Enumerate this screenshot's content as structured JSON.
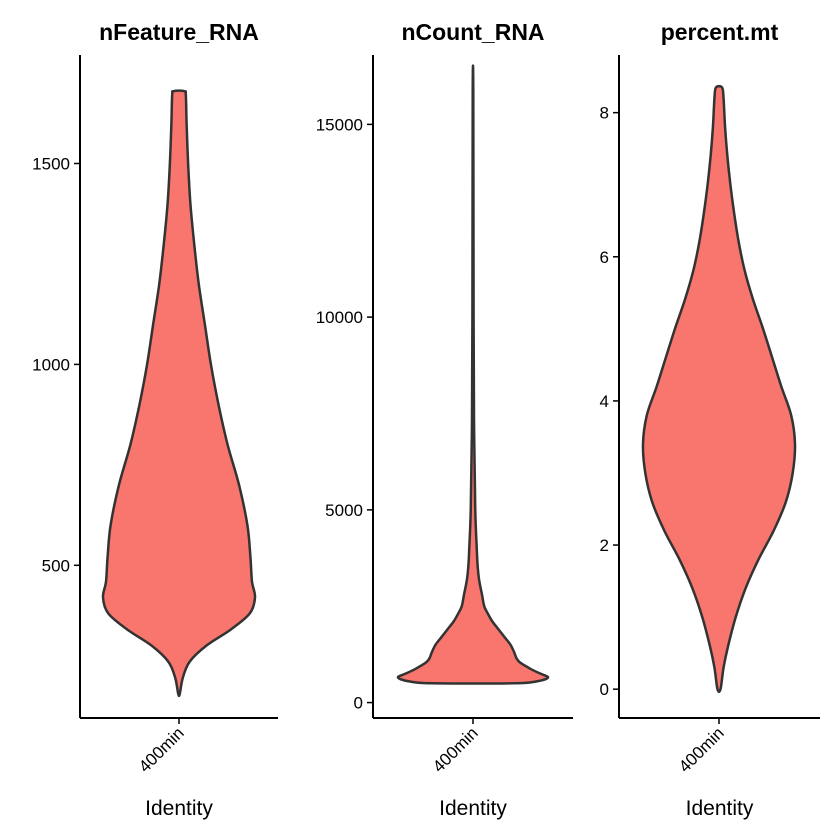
{
  "chart_data": [
    {
      "type": "violin",
      "title": "nFeature_RNA",
      "xlabel": "Identity",
      "ylabel": "",
      "categories": [
        "400min"
      ],
      "ylim": [
        120,
        1770
      ],
      "yticks": [
        500,
        1000,
        1500
      ],
      "fill_color": "#F8766D",
      "outline_color": "#333333",
      "min": 180,
      "max": 1680,
      "density_profile": [
        {
          "y": 180,
          "width": 0.01
        },
        {
          "y": 220,
          "width": 0.05
        },
        {
          "y": 260,
          "width": 0.14
        },
        {
          "y": 300,
          "width": 0.36
        },
        {
          "y": 340,
          "width": 0.68
        },
        {
          "y": 380,
          "width": 0.93
        },
        {
          "y": 420,
          "width": 1.0
        },
        {
          "y": 460,
          "width": 0.96
        },
        {
          "y": 520,
          "width": 0.94
        },
        {
          "y": 600,
          "width": 0.9
        },
        {
          "y": 700,
          "width": 0.79
        },
        {
          "y": 800,
          "width": 0.64
        },
        {
          "y": 900,
          "width": 0.52
        },
        {
          "y": 1000,
          "width": 0.42
        },
        {
          "y": 1100,
          "width": 0.34
        },
        {
          "y": 1200,
          "width": 0.26
        },
        {
          "y": 1300,
          "width": 0.2
        },
        {
          "y": 1400,
          "width": 0.15
        },
        {
          "y": 1500,
          "width": 0.12
        },
        {
          "y": 1600,
          "width": 0.1
        },
        {
          "y": 1670,
          "width": 0.09
        },
        {
          "y": 1680,
          "width": 0.07
        }
      ]
    },
    {
      "type": "violin",
      "title": "nCount_RNA",
      "xlabel": "Identity",
      "ylabel": "",
      "categories": [
        "400min"
      ],
      "ylim": [
        -400,
        16800
      ],
      "yticks": [
        0,
        5000,
        10000,
        15000
      ],
      "fill_color": "#F8766D",
      "outline_color": "#333333",
      "min": 500,
      "max": 15800,
      "density_profile": [
        {
          "y": 500,
          "width": 0.55
        },
        {
          "y": 550,
          "width": 0.85
        },
        {
          "y": 650,
          "width": 1.0
        },
        {
          "y": 750,
          "width": 0.9
        },
        {
          "y": 850,
          "width": 0.79
        },
        {
          "y": 950,
          "width": 0.7
        },
        {
          "y": 1050,
          "width": 0.62
        },
        {
          "y": 1150,
          "width": 0.58
        },
        {
          "y": 1300,
          "width": 0.55
        },
        {
          "y": 1500,
          "width": 0.5
        },
        {
          "y": 1700,
          "width": 0.42
        },
        {
          "y": 1900,
          "width": 0.34
        },
        {
          "y": 2100,
          "width": 0.26
        },
        {
          "y": 2300,
          "width": 0.2
        },
        {
          "y": 2500,
          "width": 0.15
        },
        {
          "y": 2800,
          "width": 0.12
        },
        {
          "y": 3200,
          "width": 0.08
        },
        {
          "y": 3600,
          "width": 0.06
        },
        {
          "y": 4000,
          "width": 0.05
        },
        {
          "y": 5000,
          "width": 0.03
        },
        {
          "y": 7000,
          "width": 0.015
        },
        {
          "y": 10000,
          "width": 0.008
        },
        {
          "y": 15800,
          "width": 0.004
        }
      ]
    },
    {
      "type": "violin",
      "title": "percent.mt",
      "xlabel": "Identity",
      "ylabel": "",
      "categories": [
        "400min"
      ],
      "ylim": [
        -0.4,
        8.8
      ],
      "yticks": [
        0,
        2,
        4,
        6,
        8
      ],
      "fill_color": "#F8766D",
      "outline_color": "#333333",
      "min": 0.0,
      "max": 8.35,
      "density_profile": [
        {
          "y": 0.0,
          "width": 0.02
        },
        {
          "y": 0.3,
          "width": 0.06
        },
        {
          "y": 0.6,
          "width": 0.12
        },
        {
          "y": 1.0,
          "width": 0.22
        },
        {
          "y": 1.4,
          "width": 0.35
        },
        {
          "y": 1.8,
          "width": 0.52
        },
        {
          "y": 2.2,
          "width": 0.72
        },
        {
          "y": 2.6,
          "width": 0.88
        },
        {
          "y": 3.0,
          "width": 0.97
        },
        {
          "y": 3.4,
          "width": 1.0
        },
        {
          "y": 3.8,
          "width": 0.95
        },
        {
          "y": 4.2,
          "width": 0.82
        },
        {
          "y": 4.6,
          "width": 0.7
        },
        {
          "y": 5.0,
          "width": 0.58
        },
        {
          "y": 5.4,
          "width": 0.45
        },
        {
          "y": 5.8,
          "width": 0.34
        },
        {
          "y": 6.2,
          "width": 0.26
        },
        {
          "y": 6.6,
          "width": 0.2
        },
        {
          "y": 7.0,
          "width": 0.15
        },
        {
          "y": 7.4,
          "width": 0.11
        },
        {
          "y": 7.8,
          "width": 0.08
        },
        {
          "y": 8.2,
          "width": 0.06
        },
        {
          "y": 8.35,
          "width": 0.04
        }
      ]
    }
  ]
}
